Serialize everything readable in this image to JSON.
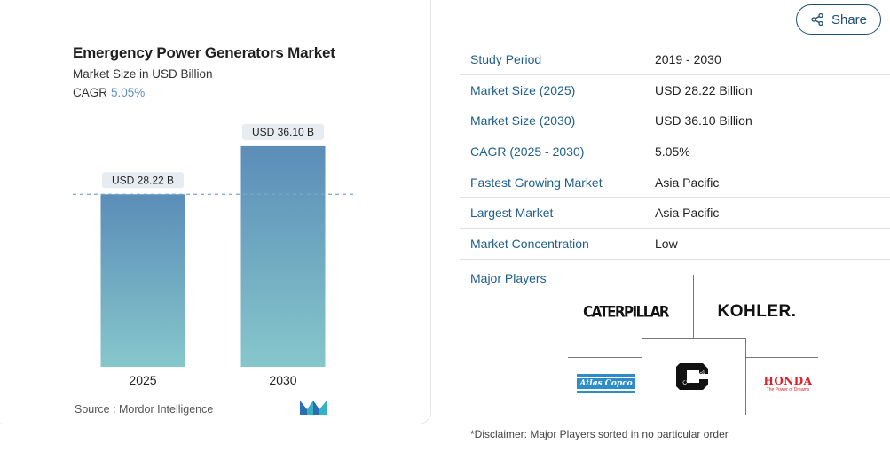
{
  "chart_data": {
    "type": "bar",
    "title": "Emergency Power Generators Market",
    "subtitle": "Market Size in USD Billion",
    "cagr_label": "CAGR",
    "cagr_value": "5.05%",
    "categories": [
      "2025",
      "2030"
    ],
    "values": [
      28.22,
      36.1
    ],
    "data_labels": [
      "USD 28.22 B",
      "USD 36.10 B"
    ],
    "ylim": [
      0,
      40
    ],
    "grid": false,
    "colors": {
      "bar_top": "#5b8db8",
      "bar_bottom": "#86c7cb",
      "label_bg": "#e6ecef",
      "reference_line": "#7aa8c9"
    }
  },
  "source": "Source :  Mordor Intelligence",
  "share": {
    "label": "Share"
  },
  "stats": [
    {
      "key": "Study Period",
      "value": "2019 - 2030"
    },
    {
      "key": "Market Size (2025)",
      "value": "USD 28.22 Billion"
    },
    {
      "key": "Market Size (2030)",
      "value": "USD 36.10 Billion"
    },
    {
      "key": "CAGR (2025 - 2030)",
      "value": "5.05%"
    },
    {
      "key": "Fastest Growing Market",
      "value": "Asia Pacific"
    },
    {
      "key": "Largest Market",
      "value": "Asia Pacific"
    },
    {
      "key": "Market Concentration",
      "value": "Low"
    }
  ],
  "major_players": {
    "label": "Major Players",
    "logos": {
      "caterpillar": "CATERPILLAR",
      "kohler": "KOHLER.",
      "atlas_copco": "Atlas Copco",
      "cummins": "Cummins",
      "honda": "HONDA",
      "honda_tagline": "The Power of Dreams"
    }
  },
  "disclaimer": "*Disclaimer: Major Players sorted in no particular order"
}
